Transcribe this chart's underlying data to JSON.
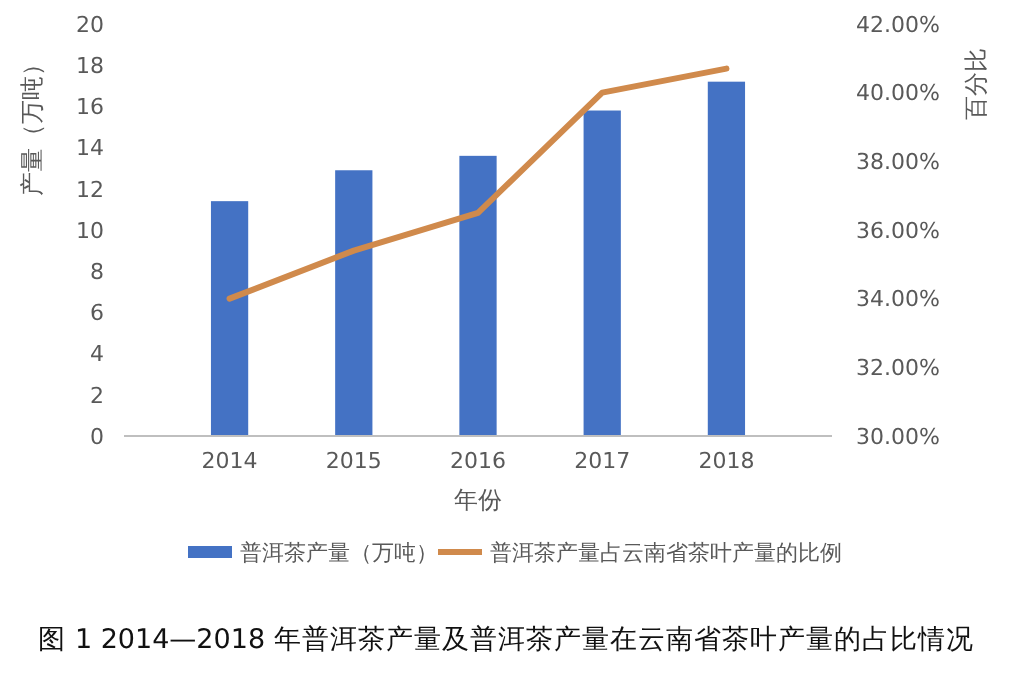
{
  "chart_data": {
    "type": "bar",
    "categories": [
      "2014",
      "2015",
      "2016",
      "2017",
      "2018"
    ],
    "series": [
      {
        "name": "普洱茶产量（万吨）",
        "color": "#4472c4",
        "values": [
          11.4,
          12.9,
          13.6,
          15.8,
          17.2
        ]
      },
      {
        "name": "普洱茶产量占云南省茶叶产量的比例",
        "type": "line",
        "axis": "y2",
        "color": "#d08a4c",
        "values": [
          34.0,
          35.4,
          36.5,
          40.0,
          40.7
        ]
      }
    ],
    "xlabel": "年份",
    "ylabel": "产量（万吨）",
    "y2label": "百分比",
    "ylim": [
      0,
      20
    ],
    "yticks": [
      0,
      2,
      4,
      6,
      8,
      10,
      12,
      14,
      16,
      18,
      20
    ],
    "y2lim": [
      30,
      42
    ],
    "y2ticks": [
      {
        "value": 30,
        "label": "30.00%"
      },
      {
        "value": 32,
        "label": "32.00%"
      },
      {
        "value": 34,
        "label": "34.00%"
      },
      {
        "value": 36,
        "label": "36.00%"
      },
      {
        "value": 38,
        "label": "38.00%"
      },
      {
        "value": 40,
        "label": "40.00%"
      },
      {
        "value": 42,
        "label": "42.00%"
      }
    ],
    "legend": "bottom",
    "grid": false,
    "annotations": [
      "图 1 2014—2018 年普洱茶产量及普洱茶产量在云南省茶叶产量的占比情况"
    ]
  }
}
